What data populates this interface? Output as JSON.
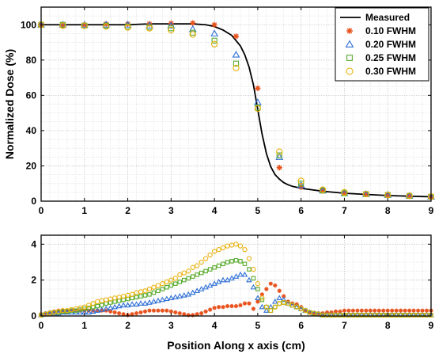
{
  "chart_data": [
    {
      "type": "line",
      "xlabel": "",
      "ylabel": "Normalized Dose (%)",
      "xlim": [
        0,
        9
      ],
      "ylim": [
        0,
        110
      ],
      "xticks": [
        "0",
        "1",
        "2",
        "3",
        "4",
        "5",
        "6",
        "7",
        "8",
        "9"
      ],
      "yticks": [
        "0",
        "20",
        "40",
        "60",
        "80",
        "100"
      ],
      "grid": true,
      "legend_position": "top-right",
      "measured": {
        "name": "Measured",
        "color": "#000000",
        "x": [
          0,
          0.5,
          1,
          1.5,
          2,
          2.5,
          3,
          3.5,
          3.8,
          4.0,
          4.2,
          4.4,
          4.6,
          4.7,
          4.8,
          4.9,
          5.0,
          5.1,
          5.2,
          5.3,
          5.4,
          5.5,
          5.6,
          5.7,
          5.8,
          6.0,
          6.5,
          7,
          7.5,
          8,
          8.5,
          9
        ],
        "y": [
          100,
          100,
          100,
          100,
          100,
          100.5,
          100.5,
          100.5,
          100,
          99,
          97,
          94,
          88,
          83,
          76,
          66,
          52,
          38,
          27,
          19.5,
          15,
          12.5,
          10.5,
          9.3,
          8.4,
          7.3,
          5.6,
          4.5,
          3.8,
          3.2,
          2.8,
          2.5
        ]
      },
      "series": [
        {
          "name": "0.10 FWHM",
          "marker": "star",
          "color": "#e8531e",
          "x": [
            0,
            0.5,
            1,
            1.5,
            2,
            2.5,
            3,
            3.5,
            4,
            4.5,
            5,
            5.5,
            6,
            6.5,
            7,
            7.5,
            8,
            8.5,
            9
          ],
          "y": [
            100,
            99.5,
            100,
            100.5,
            100.5,
            100.5,
            100.8,
            101,
            100,
            93.5,
            64,
            19,
            8,
            6,
            4.5,
            4,
            3.5,
            3,
            2.5
          ]
        },
        {
          "name": "0.20 FWHM",
          "marker": "triangle",
          "color": "#2e6fd6",
          "x": [
            0,
            0.5,
            1,
            1.5,
            2,
            2.5,
            3,
            3.5,
            4,
            4.5,
            5,
            5.5,
            6,
            6.5,
            7,
            7.5,
            8,
            8.5,
            9
          ],
          "y": [
            100,
            100,
            100,
            100,
            100,
            99.5,
            99.5,
            97.5,
            95,
            83,
            56,
            25,
            9,
            6,
            4.5,
            4,
            3.5,
            3,
            2.5
          ]
        },
        {
          "name": "0.25 FWHM",
          "marker": "square",
          "color": "#5aab2e",
          "x": [
            0,
            0.5,
            1,
            1.5,
            2,
            2.5,
            3,
            3.5,
            4,
            4.5,
            5,
            5.5,
            6,
            6.5,
            7,
            7.5,
            8,
            8.5,
            9
          ],
          "y": [
            100,
            100,
            99.5,
            99.5,
            99,
            98.5,
            98,
            95.5,
            91,
            78,
            53,
            26,
            10,
            6,
            4.5,
            4,
            3.5,
            3,
            2.5
          ]
        },
        {
          "name": "0.30 FWHM",
          "marker": "circle",
          "color": "#e8b20c",
          "x": [
            0,
            0.5,
            1,
            1.5,
            2,
            2.5,
            3,
            3.5,
            4,
            4.5,
            5,
            5.5,
            6,
            6.5,
            7,
            7.5,
            8,
            8.5,
            9
          ],
          "y": [
            100,
            99.5,
            99.5,
            99,
            98.5,
            98,
            97,
            94.5,
            89,
            75.5,
            52.5,
            28,
            11.5,
            6.5,
            5,
            4,
            3.5,
            3,
            2.5
          ]
        }
      ]
    },
    {
      "type": "scatter",
      "xlabel": "Position Along x axis (cm)",
      "ylabel": "",
      "xlim": [
        0,
        9
      ],
      "ylim": [
        0,
        4.5
      ],
      "xticks": [
        "0",
        "1",
        "2",
        "3",
        "4",
        "5",
        "6",
        "7",
        "8",
        "9"
      ],
      "yticks": [
        "0",
        "2",
        "4"
      ],
      "grid": true,
      "series": [
        {
          "name": "0.10 FWHM",
          "marker": "star",
          "color": "#e8531e",
          "x": [
            0,
            0.1,
            0.2,
            0.3,
            0.4,
            0.5,
            0.6,
            0.7,
            0.8,
            0.9,
            1.0,
            1.1,
            1.2,
            1.3,
            1.4,
            1.5,
            1.6,
            1.7,
            1.8,
            1.9,
            2.0,
            2.1,
            2.2,
            2.3,
            2.4,
            2.5,
            2.6,
            2.7,
            2.8,
            2.9,
            3.0,
            3.1,
            3.2,
            3.3,
            3.4,
            3.5,
            3.6,
            3.7,
            3.8,
            3.9,
            4.0,
            4.1,
            4.2,
            4.3,
            4.4,
            4.5,
            4.6,
            4.7,
            4.8,
            4.9,
            5.0,
            5.1,
            5.2,
            5.3,
            5.4,
            5.5,
            5.6,
            5.7,
            5.8,
            5.9,
            6.0,
            6.1,
            6.2,
            6.3,
            6.4,
            6.5,
            6.6,
            6.7,
            6.8,
            6.9,
            7.0,
            7.1,
            7.2,
            7.3,
            7.4,
            7.5,
            7.6,
            7.7,
            7.8,
            7.9,
            8.0,
            8.1,
            8.2,
            8.3,
            8.4,
            8.5,
            8.6,
            8.7,
            8.8,
            8.9,
            9.0
          ],
          "y": [
            0.1,
            0.15,
            0.2,
            0.25,
            0.3,
            0.3,
            0.3,
            0.3,
            0.3,
            0.3,
            0.3,
            0.3,
            0.3,
            0.3,
            0.3,
            0.3,
            0.25,
            0.2,
            0.15,
            0.1,
            0.05,
            0.1,
            0.15,
            0.2,
            0.25,
            0.3,
            0.3,
            0.3,
            0.3,
            0.3,
            0.25,
            0.2,
            0.15,
            0.1,
            0.05,
            0.05,
            0.1,
            0.15,
            0.25,
            0.35,
            0.45,
            0.5,
            0.5,
            0.55,
            0.55,
            0.55,
            0.6,
            0.7,
            0.7,
            0.4,
            0.8,
            1.2,
            1.5,
            1.8,
            1.7,
            1.4,
            1.1,
            0.8,
            0.7,
            0.65,
            0.5,
            0.3,
            0.2,
            0.15,
            0.15,
            0.15,
            0.2,
            0.2,
            0.25,
            0.25,
            0.3,
            0.3,
            0.3,
            0.3,
            0.3,
            0.3,
            0.3,
            0.3,
            0.3,
            0.3,
            0.3,
            0.3,
            0.3,
            0.3,
            0.3,
            0.3,
            0.3,
            0.3,
            0.3,
            0.3,
            0.3
          ]
        },
        {
          "name": "0.20 FWHM",
          "marker": "triangle",
          "color": "#2e6fd6",
          "x": [
            0,
            0.1,
            0.2,
            0.3,
            0.4,
            0.5,
            0.6,
            0.7,
            0.8,
            0.9,
            1.0,
            1.1,
            1.2,
            1.3,
            1.4,
            1.5,
            1.6,
            1.7,
            1.8,
            1.9,
            2.0,
            2.1,
            2.2,
            2.3,
            2.4,
            2.5,
            2.6,
            2.7,
            2.8,
            2.9,
            3.0,
            3.1,
            3.2,
            3.3,
            3.4,
            3.5,
            3.6,
            3.7,
            3.8,
            3.9,
            4.0,
            4.1,
            4.2,
            4.3,
            4.4,
            4.5,
            4.6,
            4.7,
            4.8,
            4.9,
            5.0,
            5.1,
            5.2,
            5.3,
            5.4,
            5.5,
            5.6,
            5.7,
            5.8,
            5.9,
            6.0,
            6.1,
            6.2,
            6.3,
            6.4,
            6.5,
            6.6,
            6.7,
            6.8,
            6.9,
            7.0,
            7.1,
            7.2,
            7.3,
            7.4,
            7.5,
            7.6,
            7.7,
            7.8,
            7.9,
            8.0,
            8.1,
            8.2,
            8.3,
            8.4,
            8.5,
            8.6,
            8.7,
            8.8,
            8.9,
            9.0
          ],
          "y": [
            0.05,
            0.1,
            0.1,
            0.15,
            0.15,
            0.2,
            0.2,
            0.2,
            0.2,
            0.2,
            0.2,
            0.2,
            0.25,
            0.3,
            0.35,
            0.4,
            0.45,
            0.5,
            0.55,
            0.6,
            0.6,
            0.65,
            0.65,
            0.7,
            0.7,
            0.75,
            0.8,
            0.85,
            0.9,
            0.95,
            1.0,
            1.05,
            1.1,
            1.15,
            1.2,
            1.3,
            1.4,
            1.5,
            1.6,
            1.7,
            1.8,
            1.9,
            2.0,
            2.0,
            2.1,
            2.2,
            2.3,
            2.3,
            2.0,
            1.6,
            1.0,
            0.5,
            0.3,
            0.5,
            0.8,
            1.0,
            0.9,
            0.7,
            0.6,
            0.5,
            0.4,
            0.3,
            0.2,
            0.15,
            0.1,
            0.05,
            0.05,
            0.05,
            0.05,
            0.05,
            0.05,
            0.05,
            0.05,
            0.05,
            0.05,
            0.05,
            0.05,
            0.05,
            0.05,
            0.05,
            0.05,
            0.05,
            0.05,
            0.05,
            0.05,
            0.05,
            0.05,
            0.05,
            0.05,
            0.05,
            0.05
          ]
        },
        {
          "name": "0.25 FWHM",
          "marker": "square",
          "color": "#5aab2e",
          "x": [
            0,
            0.1,
            0.2,
            0.3,
            0.4,
            0.5,
            0.6,
            0.7,
            0.8,
            0.9,
            1.0,
            1.1,
            1.2,
            1.3,
            1.4,
            1.5,
            1.6,
            1.7,
            1.8,
            1.9,
            2.0,
            2.1,
            2.2,
            2.3,
            2.4,
            2.5,
            2.6,
            2.7,
            2.8,
            2.9,
            3.0,
            3.1,
            3.2,
            3.3,
            3.4,
            3.5,
            3.6,
            3.7,
            3.8,
            3.9,
            4.0,
            4.1,
            4.2,
            4.3,
            4.4,
            4.5,
            4.6,
            4.7,
            4.8,
            4.9,
            5.0,
            5.1,
            5.2,
            5.3,
            5.4,
            5.5,
            5.6,
            5.7,
            5.8,
            5.9,
            6.0,
            6.1,
            6.2,
            6.3,
            6.4,
            6.5,
            6.6,
            6.7,
            6.8,
            6.9,
            7.0,
            7.1,
            7.2,
            7.3,
            7.4,
            7.5,
            7.6,
            7.7,
            7.8,
            7.9,
            8.0,
            8.1,
            8.2,
            8.3,
            8.4,
            8.5,
            8.6,
            8.7,
            8.8,
            8.9,
            9.0
          ],
          "y": [
            0.05,
            0.1,
            0.15,
            0.2,
            0.2,
            0.25,
            0.25,
            0.3,
            0.3,
            0.35,
            0.4,
            0.45,
            0.5,
            0.55,
            0.6,
            0.7,
            0.75,
            0.8,
            0.85,
            0.9,
            0.95,
            1.0,
            1.05,
            1.1,
            1.15,
            1.2,
            1.3,
            1.4,
            1.5,
            1.6,
            1.7,
            1.8,
            1.9,
            2.0,
            2.1,
            2.2,
            2.3,
            2.4,
            2.5,
            2.6,
            2.7,
            2.8,
            2.9,
            3.0,
            3.05,
            3.1,
            3.05,
            2.9,
            2.6,
            2.1,
            1.5,
            0.9,
            0.5,
            0.3,
            0.5,
            0.7,
            0.75,
            0.7,
            0.6,
            0.5,
            0.4,
            0.3,
            0.2,
            0.15,
            0.1,
            0.05,
            0.05,
            0.05,
            0.05,
            0.05,
            0.05,
            0.05,
            0.05,
            0.05,
            0.05,
            0.05,
            0.05,
            0.05,
            0.05,
            0.05,
            0.05,
            0.05,
            0.05,
            0.05,
            0.05,
            0.05,
            0.05,
            0.05,
            0.05,
            0.05,
            0.05
          ]
        },
        {
          "name": "0.30 FWHM",
          "marker": "circle",
          "color": "#e8b20c",
          "x": [
            0,
            0.1,
            0.2,
            0.3,
            0.4,
            0.5,
            0.6,
            0.7,
            0.8,
            0.9,
            1.0,
            1.1,
            1.2,
            1.3,
            1.4,
            1.5,
            1.6,
            1.7,
            1.8,
            1.9,
            2.0,
            2.1,
            2.2,
            2.3,
            2.4,
            2.5,
            2.6,
            2.7,
            2.8,
            2.9,
            3.0,
            3.1,
            3.2,
            3.3,
            3.4,
            3.5,
            3.6,
            3.7,
            3.8,
            3.9,
            4.0,
            4.1,
            4.2,
            4.3,
            4.4,
            4.5,
            4.6,
            4.7,
            4.8,
            4.9,
            5.0,
            5.1,
            5.2,
            5.3,
            5.4,
            5.5,
            5.6,
            5.7,
            5.8,
            5.9,
            6.0,
            6.1,
            6.2,
            6.3,
            6.4,
            6.5,
            6.6,
            6.7,
            6.8,
            6.9,
            7.0,
            7.1,
            7.2,
            7.3,
            7.4,
            7.5,
            7.6,
            7.7,
            7.8,
            7.9,
            8.0,
            8.1,
            8.2,
            8.3,
            8.4,
            8.5,
            8.6,
            8.7,
            8.8,
            8.9,
            9.0
          ],
          "y": [
            0.05,
            0.1,
            0.15,
            0.2,
            0.25,
            0.3,
            0.3,
            0.35,
            0.4,
            0.45,
            0.5,
            0.6,
            0.7,
            0.8,
            0.85,
            0.9,
            0.95,
            1.0,
            1.05,
            1.1,
            1.15,
            1.2,
            1.3,
            1.35,
            1.4,
            1.5,
            1.6,
            1.7,
            1.8,
            1.9,
            2.0,
            2.1,
            2.3,
            2.4,
            2.5,
            2.7,
            2.8,
            3.0,
            3.2,
            3.4,
            3.6,
            3.7,
            3.8,
            3.9,
            3.95,
            4.0,
            3.9,
            3.7,
            3.2,
            2.6,
            1.8,
            1.0,
            0.5,
            0.3,
            0.5,
            0.7,
            0.75,
            0.7,
            0.6,
            0.5,
            0.4,
            0.3,
            0.2,
            0.15,
            0.1,
            0.05,
            0.05,
            0.05,
            0.05,
            0.05,
            0.05,
            0.05,
            0.05,
            0.05,
            0.05,
            0.05,
            0.05,
            0.05,
            0.05,
            0.05,
            0.05,
            0.05,
            0.05,
            0.05,
            0.05,
            0.05,
            0.05,
            0.05,
            0.05,
            0.05,
            0.05
          ]
        }
      ]
    }
  ]
}
